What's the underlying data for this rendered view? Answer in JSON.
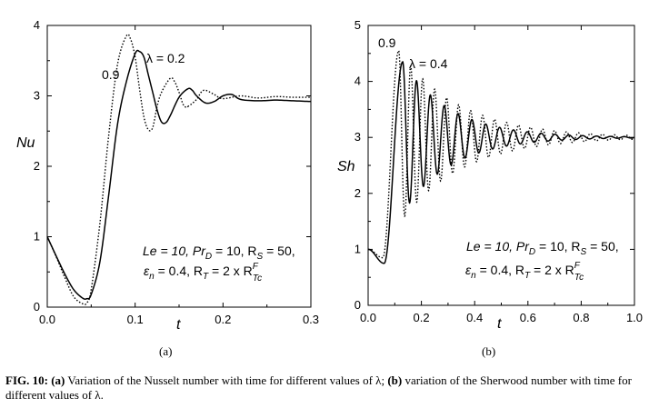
{
  "caption": {
    "fig_label": "FIG. 10:",
    "a_label": "(a)",
    "a_text": " Variation of the Nusselt number with time for different values of λ; ",
    "b_label": "(b)",
    "b_text": " variation of the Sherwood number with time for different values of λ."
  },
  "chart_data": [
    {
      "type": "line",
      "panel_label": "(a)",
      "xlabel": "t",
      "ylabel": "Nu",
      "xlim": [
        0.0,
        0.3
      ],
      "ylim": [
        0,
        4
      ],
      "xticks": [
        "0.0",
        "0.1",
        "0.2",
        "0.3"
      ],
      "yticks": [
        "0",
        "1",
        "2",
        "3",
        "4"
      ],
      "grid": false,
      "annotations": {
        "curve_solid": "λ = 0.2",
        "curve_dotted": "0.9",
        "params_line1": {
          "Le": "Le = 10, ",
          "PrD_base": "Pr",
          "PrD_sub": "D",
          "PrD_val": " = 10, R",
          "Rs_sub": "S",
          "Rs_val": " = 50,"
        },
        "params_line2": {
          "eps": "ε",
          "eps_sub": "n",
          "eps_val": " = 0.4, R",
          "RT_sub": "T",
          "RT_val": " = 2 x R",
          "RTc_sup": "F",
          "RTc_sub": "Tc"
        }
      },
      "series": [
        {
          "name": "λ = 0.2",
          "style": "solid",
          "x": [
            0.0,
            0.01,
            0.02,
            0.03,
            0.04,
            0.045,
            0.05,
            0.06,
            0.07,
            0.08,
            0.09,
            0.1,
            0.105,
            0.11,
            0.115,
            0.12,
            0.125,
            0.13,
            0.135,
            0.14,
            0.15,
            0.16,
            0.165,
            0.17,
            0.18,
            0.19,
            0.2,
            0.21,
            0.22,
            0.24,
            0.26,
            0.28,
            0.3
          ],
          "y": [
            1.0,
            0.73,
            0.47,
            0.25,
            0.13,
            0.12,
            0.18,
            0.65,
            1.6,
            2.6,
            3.2,
            3.6,
            3.63,
            3.55,
            3.3,
            3.05,
            2.8,
            2.63,
            2.62,
            2.72,
            2.98,
            3.1,
            3.08,
            3.0,
            2.9,
            2.92,
            3.0,
            3.02,
            2.95,
            2.93,
            2.94,
            2.93,
            2.92
          ]
        },
        {
          "name": "0.9",
          "style": "dotted",
          "x": [
            0.0,
            0.01,
            0.02,
            0.03,
            0.04,
            0.045,
            0.05,
            0.06,
            0.07,
            0.08,
            0.09,
            0.095,
            0.1,
            0.105,
            0.11,
            0.115,
            0.12,
            0.125,
            0.13,
            0.14,
            0.145,
            0.15,
            0.155,
            0.16,
            0.17,
            0.175,
            0.18,
            0.19,
            0.2,
            0.22,
            0.24,
            0.26,
            0.28,
            0.3
          ],
          "y": [
            1.0,
            0.72,
            0.42,
            0.15,
            0.05,
            0.06,
            0.25,
            1.2,
            2.45,
            3.45,
            3.85,
            3.8,
            3.55,
            3.1,
            2.7,
            2.52,
            2.55,
            2.85,
            3.05,
            3.25,
            3.2,
            3.05,
            2.87,
            2.85,
            2.95,
            3.05,
            3.08,
            3.02,
            2.96,
            3.0,
            2.97,
            2.99,
            2.98,
            2.98
          ]
        }
      ]
    },
    {
      "type": "line",
      "panel_label": "(b)",
      "xlabel": "t",
      "ylabel": "Sh",
      "xlim": [
        0.0,
        1.0
      ],
      "ylim": [
        0,
        5
      ],
      "xticks": [
        "0.0",
        "0.2",
        "0.4",
        "0.6",
        "0.8",
        "1.0"
      ],
      "yticks": [
        "0",
        "1",
        "2",
        "3",
        "4",
        "5"
      ],
      "grid": false,
      "annotations": {
        "curve_solid": "λ = 0.4",
        "curve_dotted": "0.9",
        "params_line1": {
          "Le": "Le = 10, ",
          "PrD_base": "Pr",
          "PrD_sub": "D",
          "PrD_val": " = 10, R",
          "Rs_sub": "S",
          "Rs_val": " = 50,"
        },
        "params_line2": {
          "eps": "ε",
          "eps_sub": "n",
          "eps_val": " = 0.4, R",
          "RT_sub": "T",
          "RT_val": " = 2 x R",
          "RTc_sup": "F",
          "RTc_sub": "Tc"
        }
      },
      "series": [
        {
          "name": "λ = 0.4",
          "style": "solid",
          "model": {
            "base": 3.0,
            "dip_t": 0.06,
            "dip_y": 0.75,
            "peak_t": 0.13,
            "peak_y": 4.35,
            "period": 0.052,
            "decay": 0.18,
            "t_end": 1.0
          }
        },
        {
          "name": "0.9",
          "style": "dotted",
          "model": {
            "base": 3.0,
            "dip_t": 0.055,
            "dip_y": 0.85,
            "peak_t": 0.115,
            "peak_y": 4.55,
            "period": 0.045,
            "decay": 0.23,
            "t_end": 1.0
          }
        }
      ]
    }
  ]
}
